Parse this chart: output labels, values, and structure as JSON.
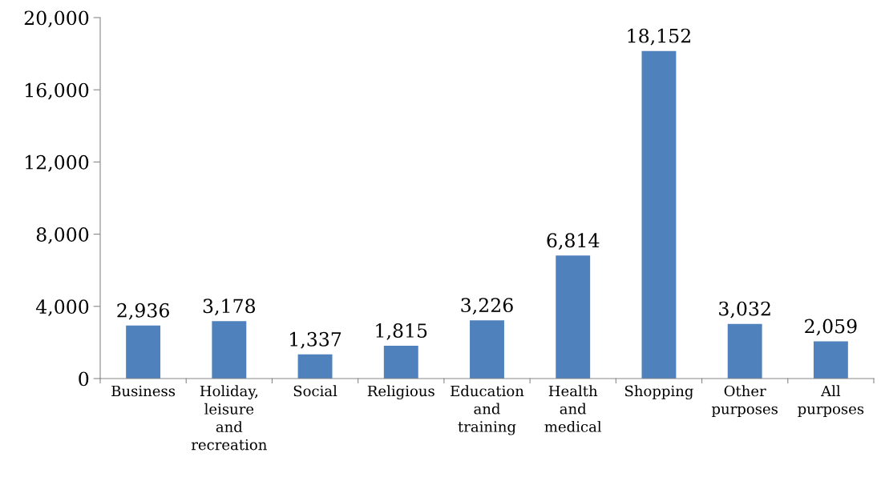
{
  "chart_data": {
    "type": "bar",
    "categories": [
      "Business",
      "Holiday,\nleisure\nand\nrecreation",
      "Social",
      "Religious",
      "Education\nand\ntraining",
      "Health\nand\nmedical",
      "Shopping",
      "Other\npurposes",
      "All\npurposes"
    ],
    "values": [
      2936,
      3178,
      1337,
      1815,
      3226,
      6814,
      18152,
      3032,
      2059
    ],
    "value_labels": [
      "2,936",
      "3,178",
      "1,337",
      "1,815",
      "3,226",
      "6,814",
      "18,152",
      "3,032",
      "2,059"
    ],
    "color": "#4f81bd",
    "ylim": [
      0,
      20000
    ],
    "yticks": [
      {
        "value": 0,
        "label": "0"
      },
      {
        "value": 4000,
        "label": "4,000"
      },
      {
        "value": 8000,
        "label": "8,000"
      },
      {
        "value": 12000,
        "label": "12,000"
      },
      {
        "value": 16000,
        "label": "16,000"
      },
      {
        "value": 20000,
        "label": "20,000"
      }
    ],
    "grid": false,
    "legend": false
  }
}
